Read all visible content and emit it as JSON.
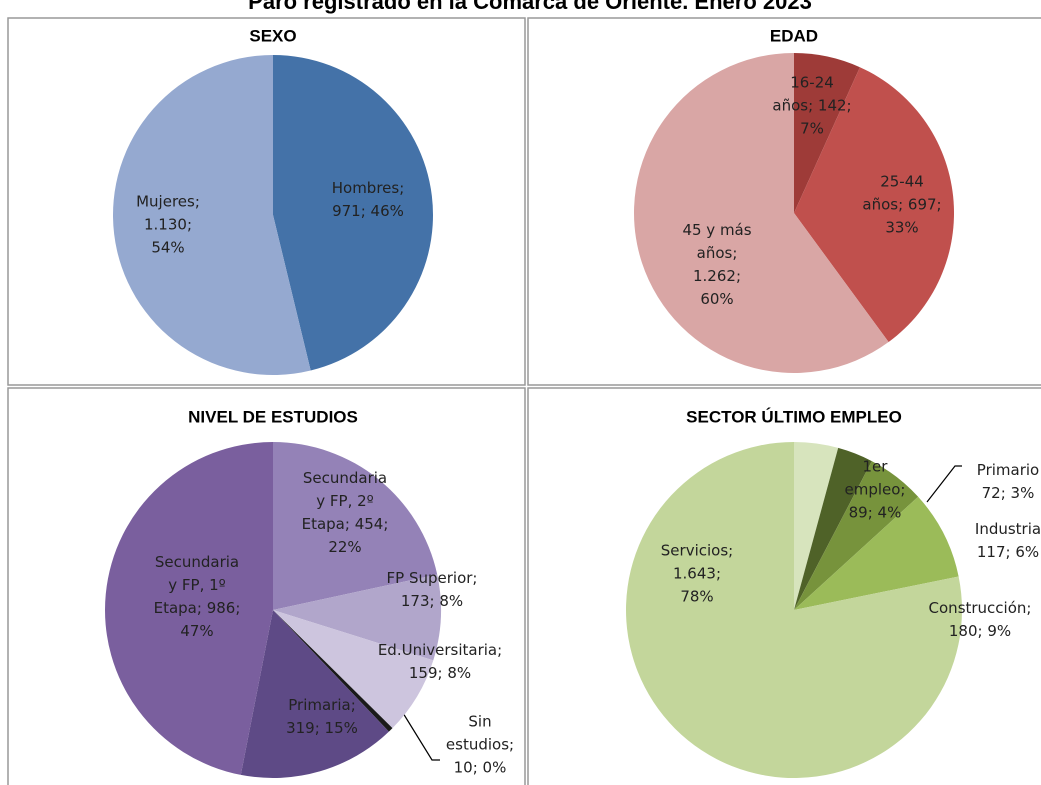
{
  "title": "Paro registrado en la Comarca de Oriente. Enero 2023",
  "chart_data": [
    {
      "type": "pie",
      "title": "SEXO",
      "values": [
        971,
        1130
      ],
      "value_labels": [
        [
          "Hombres;",
          "971; 46%"
        ],
        [
          "Mujeres;",
          "1.130;",
          "54%"
        ]
      ],
      "colors": [
        "#4472a8",
        "#95a9d0"
      ]
    },
    {
      "type": "pie",
      "title": "EDAD",
      "values": [
        142,
        697,
        1262
      ],
      "value_labels": [
        [
          "16-24",
          "años; 142;",
          "7%"
        ],
        [
          "25-44",
          "años; 697;",
          "33%"
        ],
        [
          "45 y más",
          "años;",
          "1.262;",
          "60%"
        ]
      ],
      "colors": [
        "#9e3b38",
        "#c0504d",
        "#d9a6a5"
      ]
    },
    {
      "type": "pie",
      "title": "NIVEL DE ESTUDIOS",
      "values": [
        454,
        173,
        159,
        10,
        319,
        986
      ],
      "value_labels": [
        [
          "Secundaria",
          "y FP, 2º",
          "Etapa; 454;",
          "22%"
        ],
        [
          "FP Superior;",
          "173; 8%"
        ],
        [
          "Ed.Universitaria;",
          "159; 8%"
        ],
        [
          "Sin",
          "estudios;",
          "10; 0%"
        ],
        [
          "Primaria;",
          "319; 15%"
        ],
        [
          "Secundaria",
          "y FP, 1º",
          "Etapa; 986;",
          "47%"
        ]
      ],
      "colors": [
        "#9482b7",
        "#b1a6cb",
        "#cdc5de",
        "#1a1a1a",
        "#5e4a86",
        "#7a5f9e"
      ]
    },
    {
      "type": "pie",
      "title": "SECTOR ÚLTIMO EMPLEO",
      "values": [
        89,
        72,
        117,
        180,
        1643
      ],
      "value_labels": [
        [
          "1er",
          "empleo;",
          "89; 4%"
        ],
        [
          "Primario",
          "72; 3%"
        ],
        [
          "Industria",
          "117; 6%"
        ],
        [
          "Construcción;",
          "180; 9%"
        ],
        [
          "Servicios;",
          "1.643;",
          "78%"
        ]
      ],
      "colors": [
        "#d7e4bd",
        "#4f6228",
        "#77933c",
        "#9bbb59",
        "#c3d69b"
      ]
    }
  ]
}
